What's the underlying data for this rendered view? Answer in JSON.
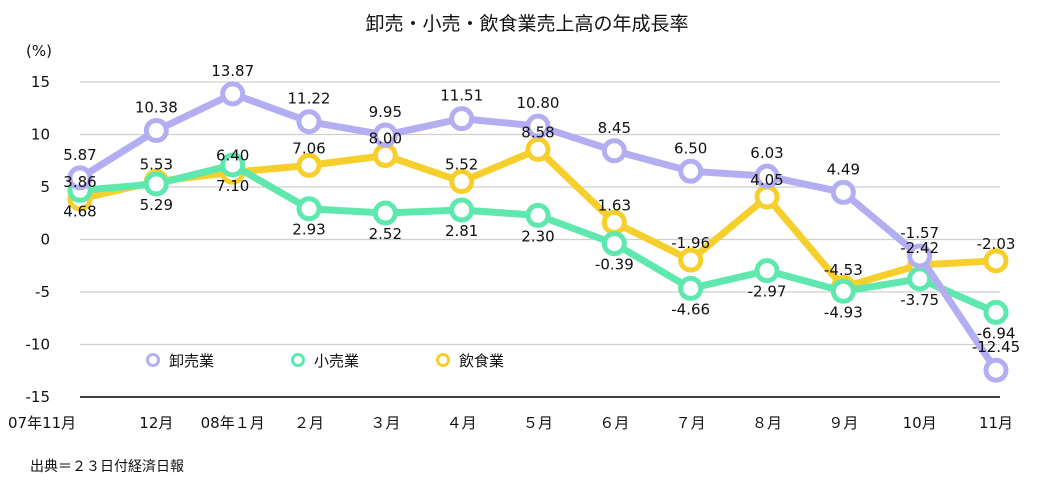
{
  "chart_data": {
    "type": "line",
    "title": "卸売・小売・飲食業売上高の年成長率",
    "unit_label": "(%)",
    "categories": [
      "07年11月",
      "12月",
      "08年１月",
      "２月",
      "３月",
      "４月",
      "５月",
      "６月",
      "７月",
      "８月",
      "９月",
      "10月",
      "11月"
    ],
    "ylim": [
      -15,
      15
    ],
    "yticks": [
      15,
      10,
      5,
      0,
      -5,
      -10,
      -15
    ],
    "grid": true,
    "legend_position": "bottom-left",
    "series": [
      {
        "name": "卸売業",
        "color": "#b3aef2",
        "values": [
          5.87,
          10.38,
          13.87,
          11.22,
          9.95,
          11.51,
          10.8,
          8.45,
          6.5,
          6.03,
          4.49,
          -1.57,
          -12.45
        ],
        "labels": [
          "5.87",
          "10.38",
          "13.87",
          "11.22",
          "9.95",
          "11.51",
          "10.80",
          "8.45",
          "6.50",
          "6.03",
          "4.49",
          "-1.57",
          "-12.45"
        ]
      },
      {
        "name": "小売業",
        "color": "#5fe8ae",
        "values": [
          4.68,
          5.29,
          7.1,
          2.93,
          2.52,
          2.81,
          2.3,
          -0.39,
          -4.66,
          -2.97,
          -4.93,
          -3.75,
          -6.94
        ],
        "labels": [
          "4.68",
          "5.29",
          "7.10",
          "2.93",
          "2.52",
          "2.81",
          "2.30",
          "-0.39",
          "-4.66",
          "-2.97",
          "-4.93",
          "-3.75",
          "-6.94"
        ]
      },
      {
        "name": "飲食業",
        "color": "#f7cf2c",
        "values": [
          3.86,
          5.53,
          6.4,
          7.06,
          8.0,
          5.52,
          8.58,
          1.63,
          -1.96,
          4.05,
          -4.53,
          -2.42,
          -2.03
        ],
        "labels": [
          "3.86",
          "5.53",
          "6.40",
          "7.06",
          "8.00",
          "5.52",
          "8.58",
          "1.63",
          "-1.96",
          "4.05",
          "-4.53",
          "-2.42",
          "-2.03"
        ]
      }
    ]
  },
  "source": "出典＝２３日付経済日報"
}
